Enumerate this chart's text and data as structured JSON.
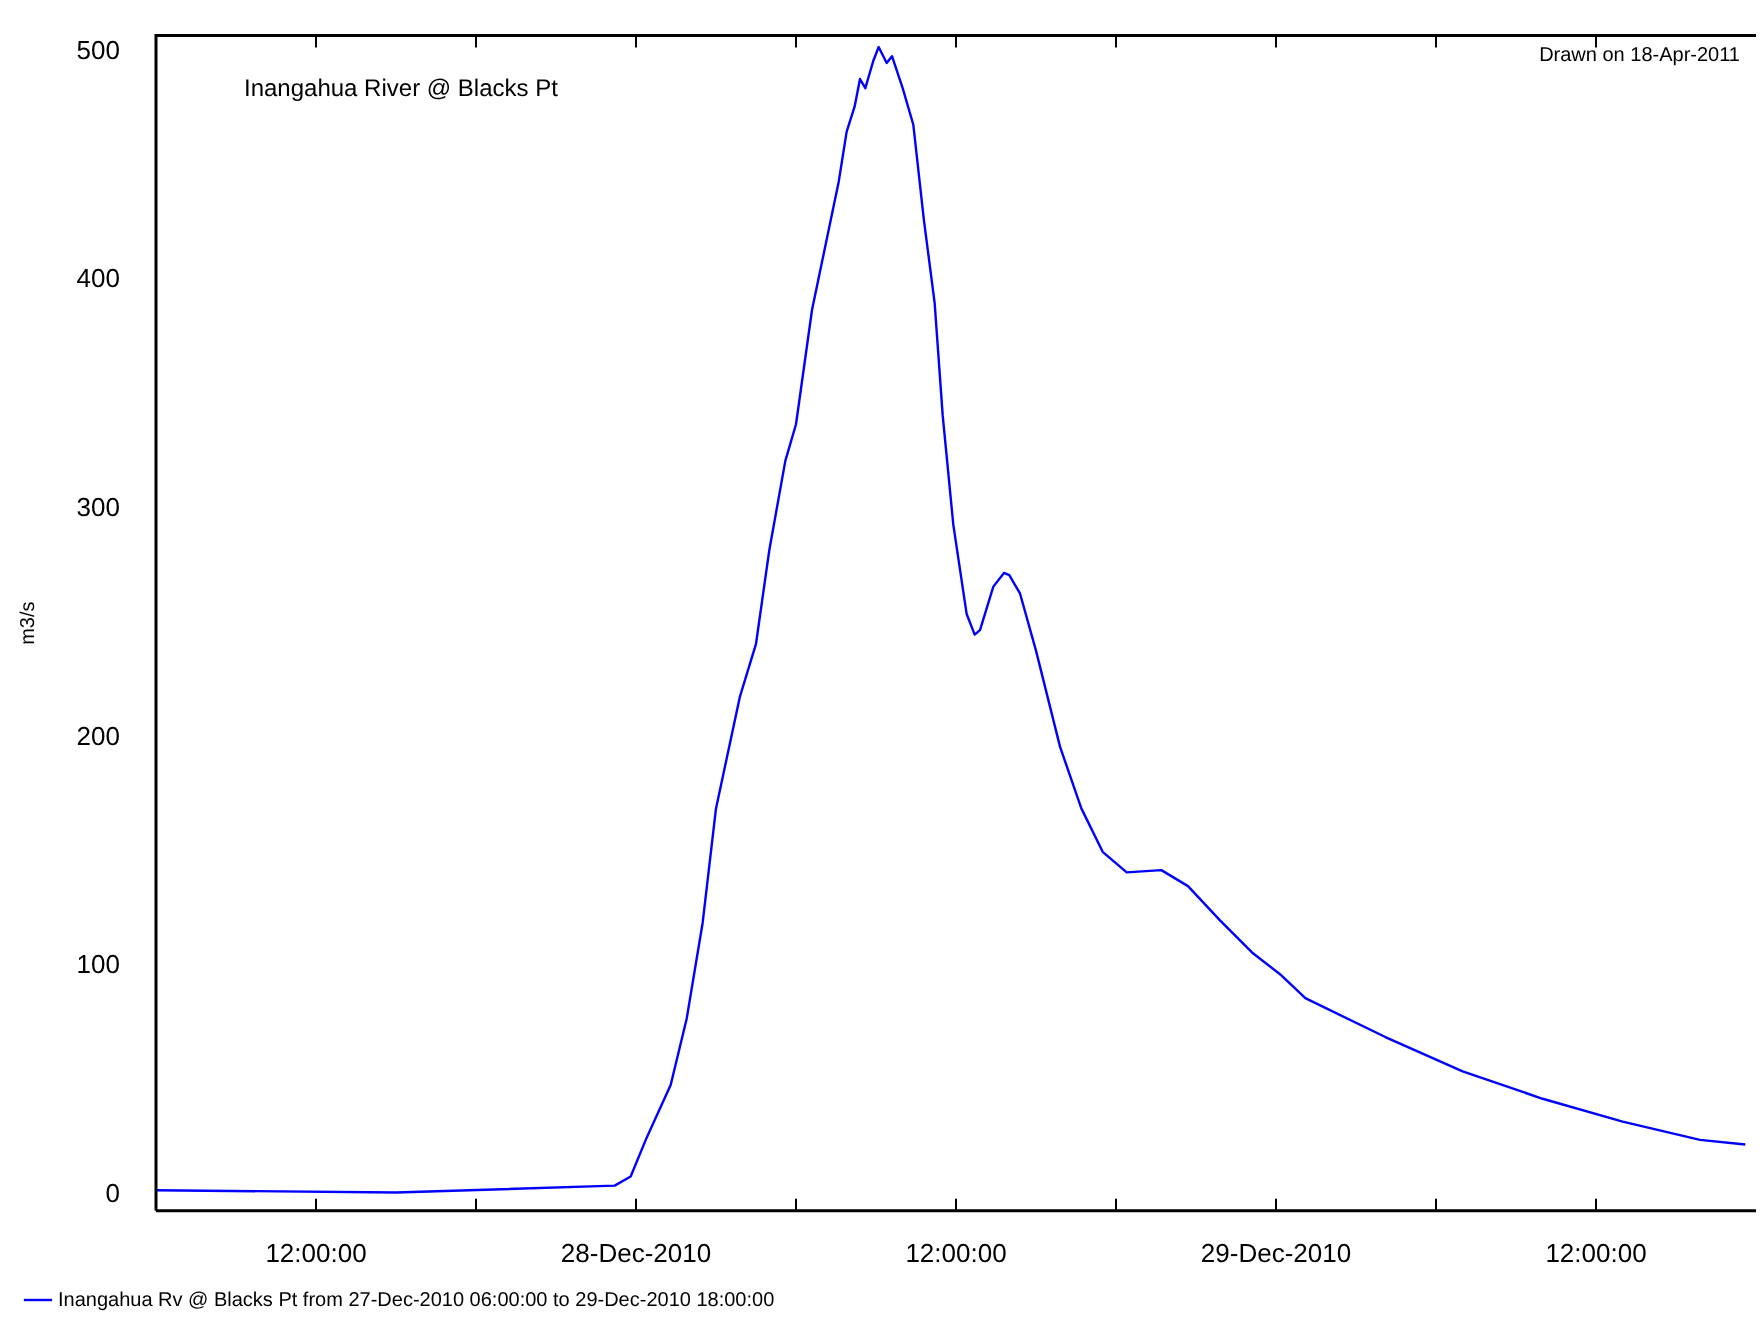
{
  "chart_data": {
    "type": "line",
    "title": "Inangahua River @ Blacks Pt",
    "ylabel": "m3/s",
    "annotations": [
      "Drawn on 18-Apr-2011"
    ],
    "x": [
      "2010-12-27T06:00",
      "2010-12-27T15:00",
      "2010-12-27T23:12",
      "2010-12-27T23:48",
      "2010-12-28T00:24",
      "2010-12-28T01:18",
      "2010-12-28T01:54",
      "2010-12-28T02:30",
      "2010-12-28T03:00",
      "2010-12-28T03:54",
      "2010-12-28T04:30",
      "2010-12-28T05:00",
      "2010-12-28T05:36",
      "2010-12-28T06:00",
      "2010-12-28T06:36",
      "2010-12-28T07:06",
      "2010-12-28T07:36",
      "2010-12-28T07:54",
      "2010-12-28T08:12",
      "2010-12-28T08:24",
      "2010-12-28T08:36",
      "2010-12-28T08:54",
      "2010-12-28T09:06",
      "2010-12-28T09:24",
      "2010-12-28T09:36",
      "2010-12-28T10:00",
      "2010-12-28T10:24",
      "2010-12-28T10:48",
      "2010-12-28T11:12",
      "2010-12-28T11:30",
      "2010-12-28T11:54",
      "2010-12-28T12:24",
      "2010-12-28T12:42",
      "2010-12-28T12:54",
      "2010-12-28T13:24",
      "2010-12-28T13:48",
      "2010-12-28T14:00",
      "2010-12-28T14:24",
      "2010-12-28T15:00",
      "2010-12-28T15:54",
      "2010-12-28T16:42",
      "2010-12-28T17:30",
      "2010-12-28T18:24",
      "2010-12-28T19:42",
      "2010-12-28T20:42",
      "2010-12-28T21:54",
      "2010-12-28T23:06",
      "2010-12-29T00:12",
      "2010-12-29T01:06",
      "2010-12-29T04:06",
      "2010-12-29T07:00",
      "2010-12-29T10:00",
      "2010-12-29T13:00",
      "2010-12-29T15:54",
      "2010-12-29T17:36"
    ],
    "series": [
      {
        "name": "Inangahua Rv @ Blacks Pt from 27-Dec-2010 06:00:00 to 29-Dec-2010 18:00:00",
        "color": "#0000ff",
        "values": [
          2,
          1,
          4,
          8,
          25,
          48,
          77,
          119,
          169,
          218,
          241,
          282,
          321,
          337,
          387,
          415,
          443,
          465,
          476,
          488,
          484,
          496,
          502,
          495,
          498,
          484,
          468,
          426,
          390,
          341,
          293,
          254,
          245,
          247,
          266,
          272,
          271,
          263,
          238,
          196,
          169,
          150,
          141,
          142,
          135,
          120,
          106,
          96,
          86,
          69,
          54,
          42,
          32,
          24,
          22
        ]
      }
    ],
    "xlim": [
      "2010-12-27T06:00",
      "2010-12-29T18:00"
    ],
    "xticks": [
      {
        "value": "2010-12-27T12:00",
        "label": "12:00:00"
      },
      {
        "value": "2010-12-27T18:00",
        "label": null
      },
      {
        "value": "2010-12-28T00:00",
        "label": "28-Dec-2010"
      },
      {
        "value": "2010-12-28T06:00",
        "label": null
      },
      {
        "value": "2010-12-28T12:00",
        "label": "12:00:00"
      },
      {
        "value": "2010-12-28T18:00",
        "label": null
      },
      {
        "value": "2010-12-29T00:00",
        "label": "29-Dec-2010"
      },
      {
        "value": "2010-12-29T06:00",
        "label": null
      },
      {
        "value": "2010-12-29T12:00",
        "label": "12:00:00"
      }
    ],
    "ylim": [
      -7,
      507
    ],
    "yticks": [
      0,
      100,
      200,
      300,
      400,
      500
    ],
    "grid": false,
    "legend": "bottom",
    "marker": "none",
    "line_style": "solid"
  }
}
